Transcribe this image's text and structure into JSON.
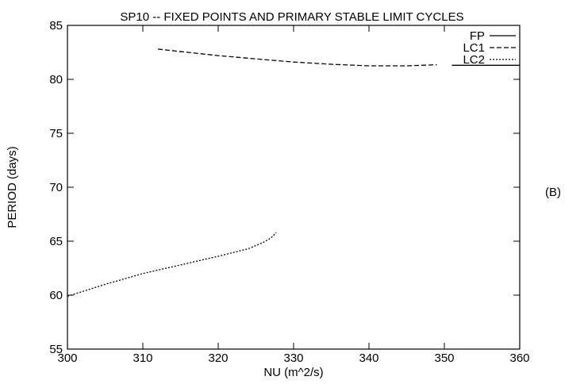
{
  "chart_data": {
    "type": "line",
    "title": "SP10 -- FIXED POINTS AND PRIMARY STABLE LIMIT CYCLES",
    "xlabel": "NU (m^2/s)",
    "ylabel": "PERIOD (days)",
    "xlim": [
      300,
      360
    ],
    "ylim": [
      55,
      85
    ],
    "xticks": [
      300,
      310,
      320,
      330,
      340,
      350,
      360
    ],
    "yticks": [
      55,
      60,
      65,
      70,
      75,
      80,
      85
    ],
    "grid": false,
    "legend_position": "top-right",
    "panel_label": "(B)",
    "series": [
      {
        "name": "FP",
        "style": "solid",
        "points": [
          [
            351,
            81.3
          ],
          [
            360,
            81.3
          ]
        ]
      },
      {
        "name": "LC1",
        "style": "dashed",
        "points": [
          [
            312,
            82.8
          ],
          [
            316,
            82.5
          ],
          [
            320,
            82.2
          ],
          [
            325,
            81.9
          ],
          [
            330,
            81.6
          ],
          [
            335,
            81.4
          ],
          [
            340,
            81.25
          ],
          [
            345,
            81.25
          ],
          [
            349,
            81.35
          ]
        ]
      },
      {
        "name": "LC2",
        "style": "dotted",
        "points": [
          [
            300,
            59.9
          ],
          [
            305,
            61.0
          ],
          [
            310,
            62.0
          ],
          [
            315,
            62.8
          ],
          [
            320,
            63.6
          ],
          [
            324,
            64.3
          ],
          [
            326,
            64.9
          ],
          [
            327,
            65.3
          ],
          [
            327.7,
            65.8
          ]
        ]
      }
    ]
  }
}
